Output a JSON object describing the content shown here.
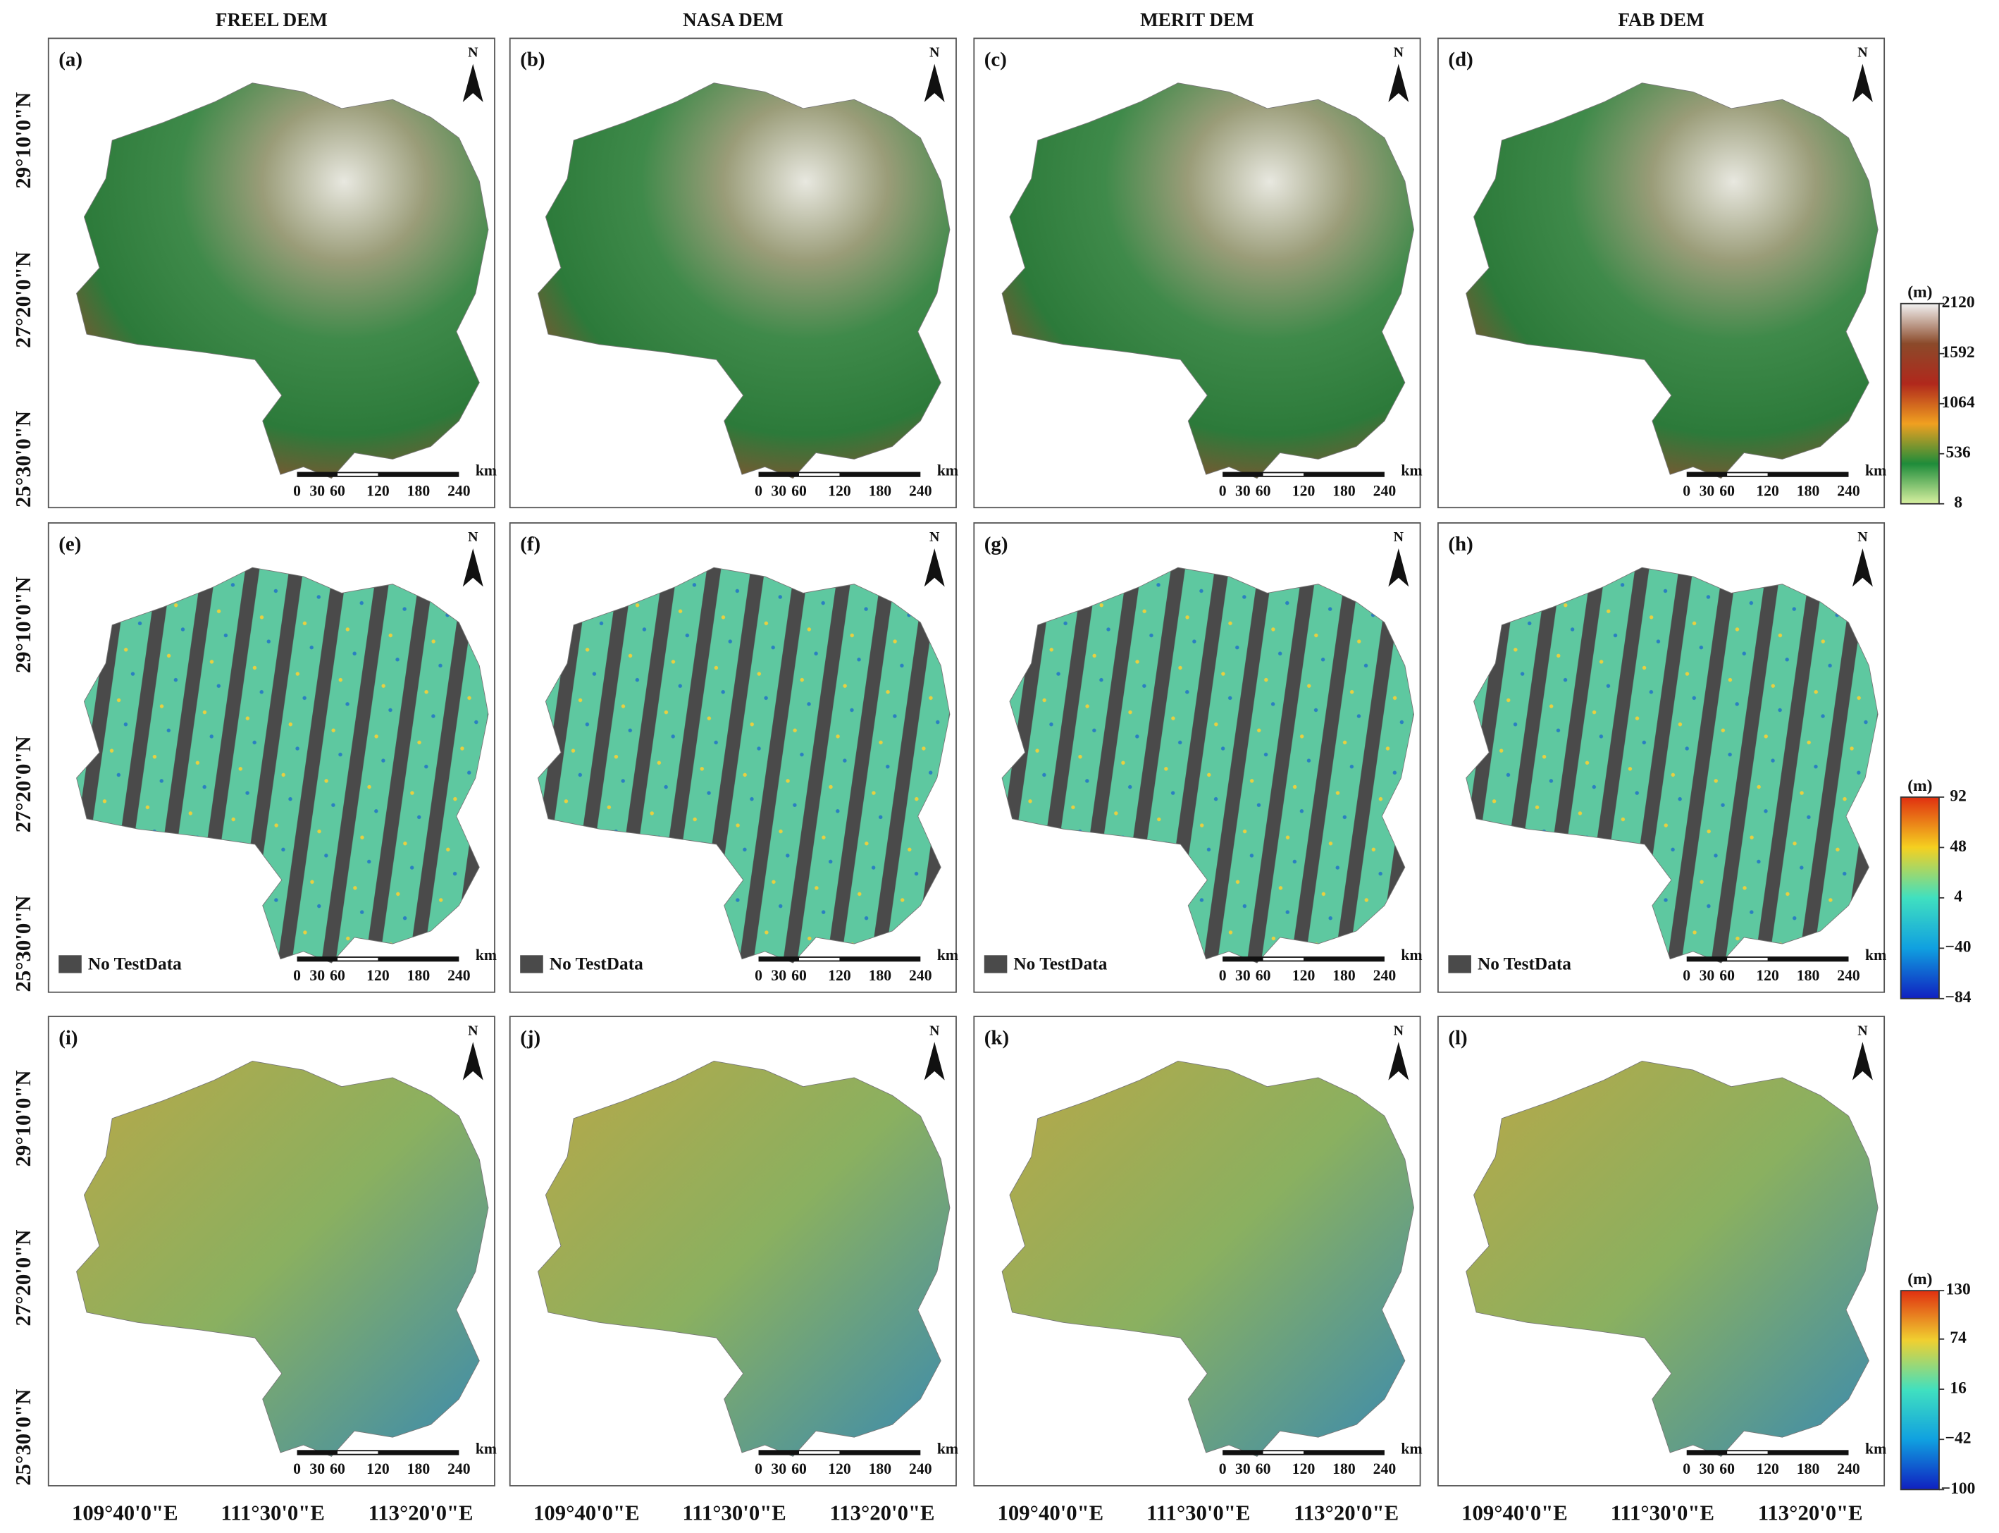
{
  "columns": [
    "FREEL DEM",
    "NASA DEM",
    "MERIT DEM",
    "FAB DEM"
  ],
  "panels": [
    [
      "(a)",
      "(b)",
      "(c)",
      "(d)"
    ],
    [
      "(e)",
      "(f)",
      "(g)",
      "(h)"
    ],
    [
      "(i)",
      "(j)",
      "(k)",
      "(l)"
    ]
  ],
  "lat_labels": [
    "29°10'0\"N",
    "27°20'0\"N",
    "25°30'0\"N"
  ],
  "lon_labels": [
    "109°40'0\"E",
    "111°30'0\"E",
    "113°20'0\"E"
  ],
  "north": "N",
  "scalebar": {
    "unit": "km",
    "ticks": [
      0,
      30,
      60,
      120,
      180,
      240
    ]
  },
  "no_data_label": "No TestData",
  "colorbars": [
    {
      "unit": "(m)",
      "ticks": [
        2120,
        1592,
        1064,
        536,
        8
      ],
      "colors": [
        "#f2f2f2",
        "#8b4a2a",
        "#b0281c",
        "#f0a020",
        "#1e8c3a",
        "#d8f0a0"
      ]
    },
    {
      "unit": "(m)",
      "ticks": [
        92,
        48,
        4,
        {
          "value": -40,
          "label": "−40"
        },
        {
          "value": -84,
          "label": "−84"
        }
      ],
      "colors": [
        "#e03010",
        "#f5d020",
        "#40e0c0",
        "#10a0e0",
        "#1020c0"
      ]
    },
    {
      "unit": "(m)",
      "ticks": [
        130,
        74,
        16,
        {
          "value": -42,
          "label": "−42"
        },
        {
          "value": -100,
          "label": "−100"
        }
      ],
      "colors": [
        "#e03010",
        "#f0d030",
        "#40e0c0",
        "#10a0e0",
        "#1020c0"
      ]
    }
  ]
}
